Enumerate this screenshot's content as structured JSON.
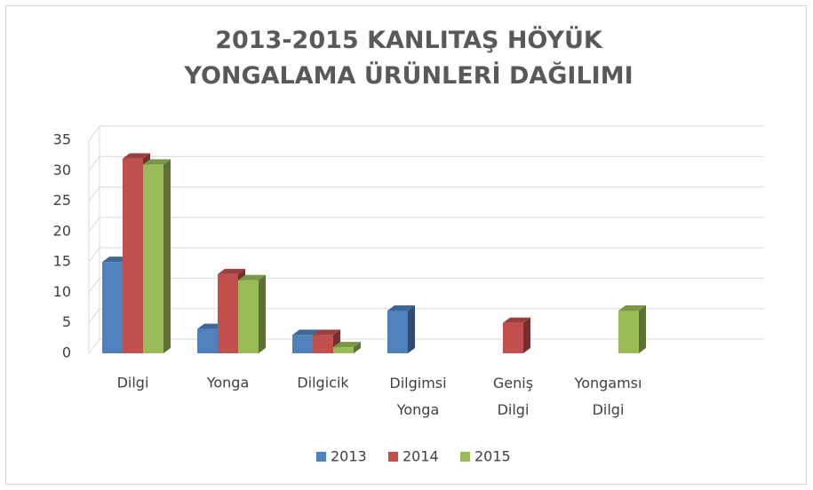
{
  "chart_data": {
    "type": "bar3d",
    "title": "2013-2015 KANLITAŞ HÖYÜK YONGALAMA ÜRÜNLERİ DAĞILIMI",
    "categories": [
      "Dilgi",
      "Yonga",
      "Dilgicik",
      "Dilgimsi Yonga",
      "Geniş Dilgi",
      "Yongamsı Dilgi"
    ],
    "series": [
      {
        "name": "2013",
        "color": "#4f81bd",
        "values": [
          15,
          4,
          3,
          7,
          null,
          null
        ]
      },
      {
        "name": "2014",
        "color": "#c0504d",
        "values": [
          32,
          13,
          3,
          null,
          5,
          null
        ]
      },
      {
        "name": "2015",
        "color": "#9bbb59",
        "values": [
          31,
          12,
          1,
          null,
          null,
          7
        ]
      }
    ],
    "ylim": [
      0,
      35
    ],
    "yticks": [
      0,
      5,
      10,
      15,
      20,
      25,
      30,
      35
    ],
    "grid": true,
    "legend": "bottom"
  }
}
